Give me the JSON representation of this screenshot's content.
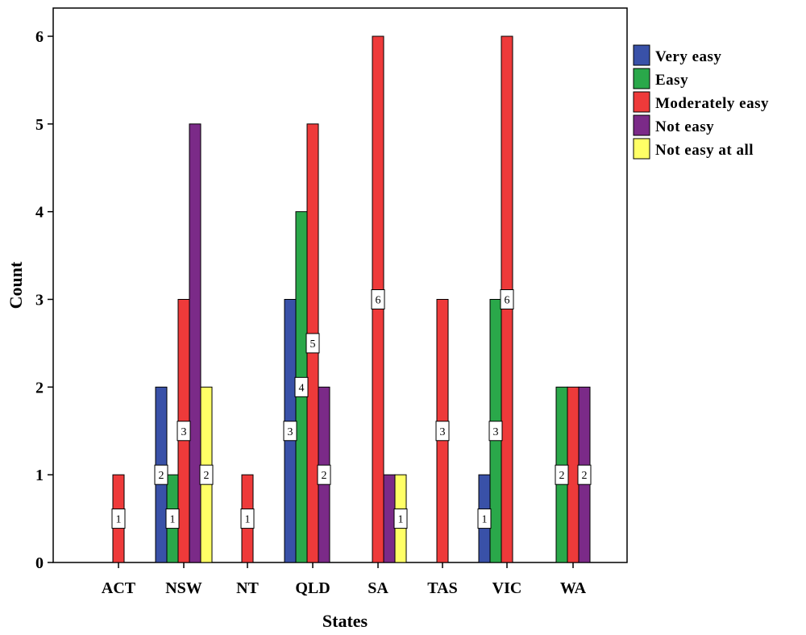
{
  "chart_data": {
    "type": "bar",
    "xlabel": "States",
    "ylabel": "Count",
    "categories": [
      "ACT",
      "NSW",
      "NT",
      "QLD",
      "SA",
      "TAS",
      "VIC",
      "WA"
    ],
    "ylim": [
      0,
      6
    ],
    "yticks": [
      0,
      1,
      2,
      3,
      4,
      5,
      6
    ],
    "grid": false,
    "legend_position": "right",
    "series": [
      {
        "name": "Very easy",
        "color": "#3951a8",
        "values": [
          0,
          2,
          0,
          3,
          0,
          0,
          1,
          0
        ]
      },
      {
        "name": "Easy",
        "color": "#2aa84a",
        "values": [
          0,
          1,
          0,
          4,
          0,
          0,
          3,
          2
        ]
      },
      {
        "name": "Moderately easy",
        "color": "#ee3a3a",
        "values": [
          1,
          3,
          1,
          5,
          6,
          3,
          6,
          2
        ]
      },
      {
        "name": "Not easy",
        "color": "#7b2a88",
        "values": [
          0,
          5,
          0,
          2,
          1,
          0,
          0,
          2
        ]
      },
      {
        "name": "Not easy at all",
        "color": "#ffff66",
        "values": [
          0,
          2,
          0,
          0,
          1,
          0,
          0,
          0
        ]
      }
    ],
    "data_labels": [
      {
        "category": "ACT",
        "series": "Moderately easy",
        "text": "1"
      },
      {
        "category": "NSW",
        "series": "Very easy",
        "text": "2"
      },
      {
        "category": "NSW",
        "series": "Easy",
        "text": "1"
      },
      {
        "category": "NSW",
        "series": "Moderately easy",
        "text": "3"
      },
      {
        "category": "NSW",
        "series": "Not easy at all",
        "text": "2"
      },
      {
        "category": "NT",
        "series": "Moderately easy",
        "text": "1"
      },
      {
        "category": "QLD",
        "series": "Very easy",
        "text": "3"
      },
      {
        "category": "QLD",
        "series": "Easy",
        "text": "4"
      },
      {
        "category": "QLD",
        "series": "Moderately easy",
        "text": "5"
      },
      {
        "category": "QLD",
        "series": "Not easy",
        "text": "2"
      },
      {
        "category": "SA",
        "series": "Moderately easy",
        "text": "6"
      },
      {
        "category": "SA",
        "series": "Not easy at all",
        "text": "1"
      },
      {
        "category": "TAS",
        "series": "Moderately easy",
        "text": "3"
      },
      {
        "category": "VIC",
        "series": "Very easy",
        "text": "1"
      },
      {
        "category": "VIC",
        "series": "Easy",
        "text": "3"
      },
      {
        "category": "VIC",
        "series": "Moderately easy",
        "text": "6"
      },
      {
        "category": "WA",
        "series": "Easy",
        "text": "2"
      },
      {
        "category": "WA",
        "series": "Not easy",
        "text": "2"
      }
    ]
  }
}
